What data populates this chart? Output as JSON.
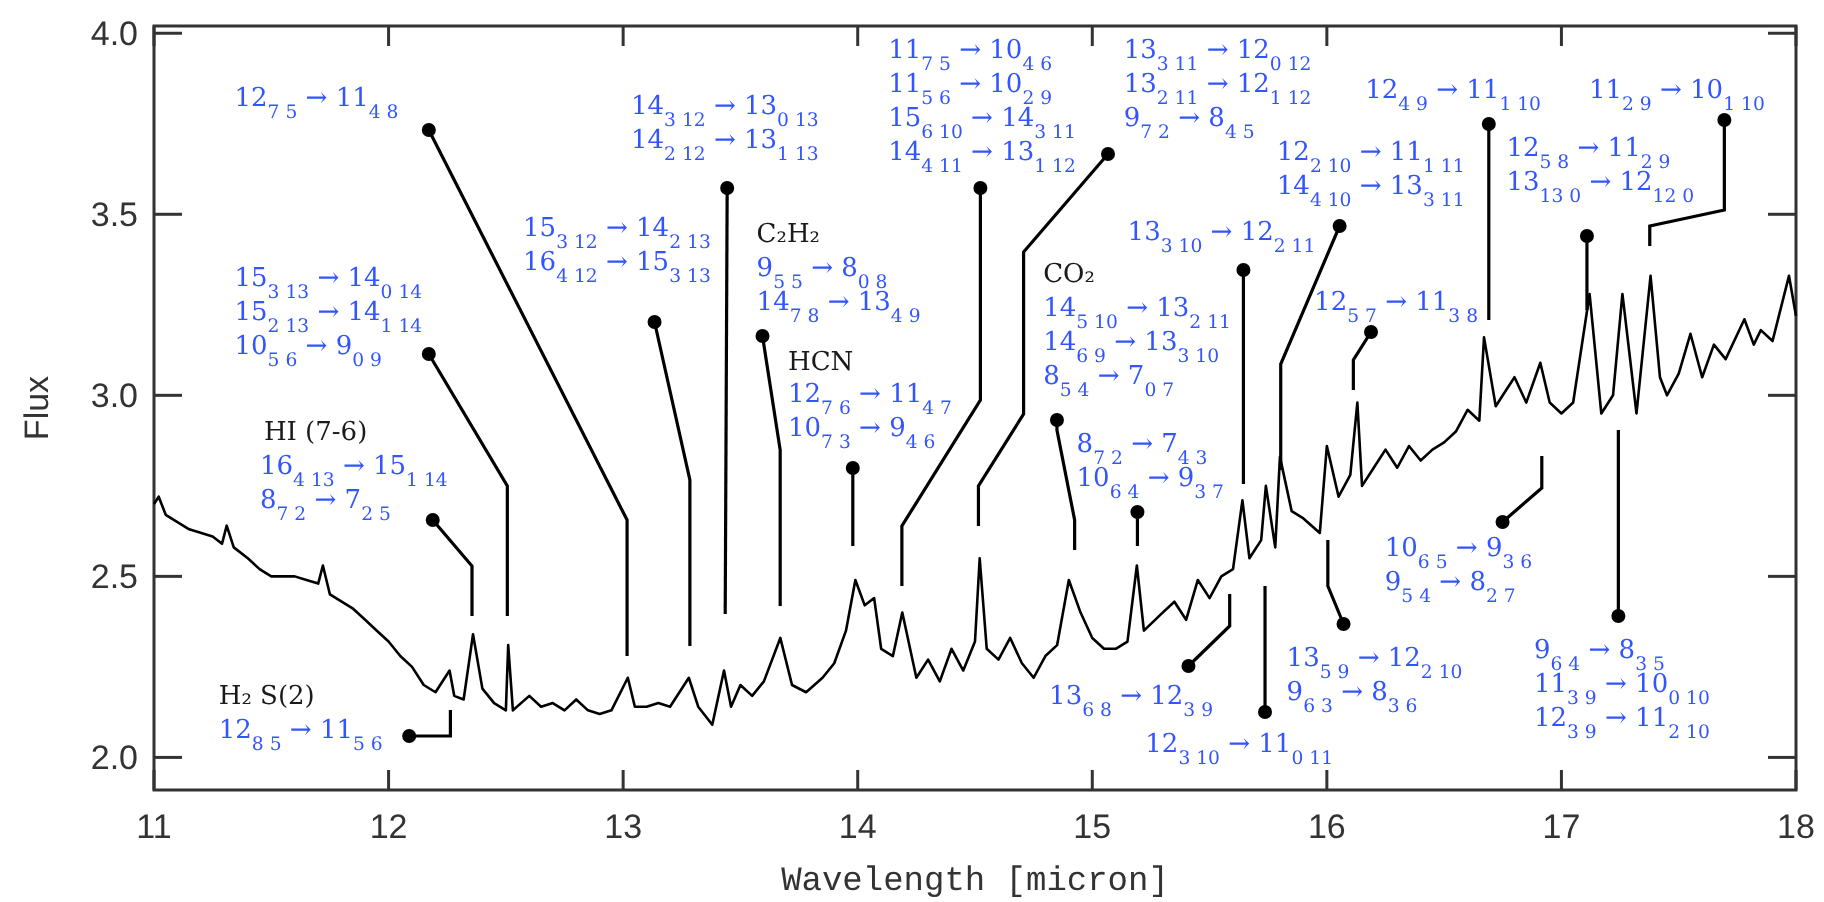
{
  "chart_data": {
    "type": "line",
    "xlabel": "Wavelength [micron]",
    "ylabel": "Flux",
    "xlim": [
      11,
      18
    ],
    "ylim": [
      1.91,
      4.02
    ],
    "xticks": [
      11,
      12,
      13,
      14,
      15,
      16,
      17,
      18
    ],
    "yticks": [
      {
        "value": 2,
        "label": "2.0"
      },
      {
        "value": 2.5,
        "label": "2.5"
      },
      {
        "value": 3,
        "label": "3.0"
      },
      {
        "value": 3.5,
        "label": "3.5"
      },
      {
        "value": 4,
        "label": "4.0"
      }
    ],
    "series": [
      {
        "color": "#000000",
        "x": [
          11.0,
          11.02,
          11.05,
          11.15,
          11.25,
          11.29,
          11.31,
          11.34,
          11.4,
          11.45,
          11.5,
          11.55,
          11.6,
          11.65,
          11.7,
          11.72,
          11.75,
          11.8,
          11.85,
          11.9,
          11.95,
          12.0,
          12.05,
          12.1,
          12.15,
          12.2,
          12.26,
          12.28,
          12.32,
          12.36,
          12.4,
          12.45,
          12.5,
          12.51,
          12.53,
          12.6,
          12.65,
          12.7,
          12.75,
          12.8,
          12.85,
          12.9,
          12.95,
          13.02,
          13.05,
          13.1,
          13.15,
          13.2,
          13.28,
          13.32,
          13.38,
          13.43,
          13.46,
          13.5,
          13.55,
          13.6,
          13.67,
          13.72,
          13.78,
          13.85,
          13.9,
          13.95,
          13.99,
          14.03,
          14.07,
          14.1,
          14.15,
          14.19,
          14.25,
          14.3,
          14.35,
          14.4,
          14.45,
          14.5,
          14.52,
          14.55,
          14.6,
          14.65,
          14.7,
          14.75,
          14.8,
          14.85,
          14.9,
          14.95,
          15.0,
          15.05,
          15.1,
          15.15,
          15.19,
          15.22,
          15.3,
          15.35,
          15.4,
          15.45,
          15.5,
          15.55,
          15.6,
          15.64,
          15.67,
          15.72,
          15.74,
          15.78,
          15.8,
          15.85,
          15.9,
          15.97,
          16.0,
          16.05,
          16.1,
          16.13,
          16.15,
          16.2,
          16.25,
          16.3,
          16.35,
          16.4,
          16.45,
          16.5,
          16.55,
          16.6,
          16.65,
          16.67,
          16.72,
          16.75,
          16.8,
          16.85,
          16.91,
          16.95,
          17.0,
          17.05,
          17.12,
          17.17,
          17.22,
          17.26,
          17.32,
          17.38,
          17.42,
          17.45,
          17.5,
          17.55,
          17.6,
          17.65,
          17.7,
          17.78,
          17.82,
          17.85,
          17.9,
          17.97,
          18.0
        ],
        "values": [
          2.7,
          2.72,
          2.67,
          2.63,
          2.61,
          2.59,
          2.64,
          2.58,
          2.55,
          2.52,
          2.5,
          2.5,
          2.5,
          2.49,
          2.48,
          2.53,
          2.45,
          2.43,
          2.41,
          2.38,
          2.35,
          2.32,
          2.28,
          2.25,
          2.2,
          2.18,
          2.24,
          2.17,
          2.16,
          2.34,
          2.19,
          2.15,
          2.13,
          2.31,
          2.13,
          2.17,
          2.14,
          2.15,
          2.13,
          2.16,
          2.13,
          2.12,
          2.13,
          2.22,
          2.14,
          2.14,
          2.15,
          2.14,
          2.22,
          2.14,
          2.09,
          2.24,
          2.14,
          2.2,
          2.17,
          2.21,
          2.33,
          2.2,
          2.18,
          2.22,
          2.26,
          2.35,
          2.49,
          2.42,
          2.44,
          2.3,
          2.28,
          2.4,
          2.22,
          2.27,
          2.21,
          2.3,
          2.24,
          2.32,
          2.55,
          2.3,
          2.27,
          2.33,
          2.26,
          2.22,
          2.28,
          2.31,
          2.49,
          2.4,
          2.33,
          2.3,
          2.3,
          2.32,
          2.53,
          2.35,
          2.4,
          2.43,
          2.38,
          2.49,
          2.44,
          2.5,
          2.52,
          2.71,
          2.55,
          2.6,
          2.75,
          2.58,
          2.83,
          2.68,
          2.66,
          2.62,
          2.86,
          2.72,
          2.78,
          2.98,
          2.75,
          2.8,
          2.85,
          2.8,
          2.86,
          2.82,
          2.85,
          2.87,
          2.9,
          2.96,
          2.93,
          3.16,
          2.97,
          3.0,
          3.05,
          2.98,
          3.09,
          2.98,
          2.95,
          2.98,
          3.28,
          2.95,
          3.0,
          3.28,
          2.95,
          3.33,
          3.05,
          3.0,
          3.06,
          3.17,
          3.05,
          3.14,
          3.1,
          3.21,
          3.14,
          3.18,
          3.15,
          3.33,
          3.22
        ]
      }
    ],
    "annotations": [
      "12$_{7 5}$ → 11$_{4 8}$",
      "15$_{3 13}$ → 14$_{0 14}$",
      "15$_{2 13}$ → 14$_{1 14}$",
      "10$_{5 6}$ → 9$_{0 9}$",
      "HI (7-6)",
      "16$_{4 13}$ → 15$_{1 14}$",
      "8$_{7 2}$ → 7$_{2 5}$",
      "H₂ S(2)",
      "12$_{8 5}$ → 11$_{5 6}$",
      "14$_{3 12}$ → 13$_{0 13}$",
      "14$_{2 12}$ → 13$_{1 13}$",
      "15$_{3 12}$ → 14$_{2 13}$",
      "16$_{4 12}$ → 15$_{3 13}$",
      "C₂H₂",
      "9$_{5 5}$ → 8$_{0 8}$",
      "14$_{7 8}$ → 13$_{4 9}$",
      "HCN",
      "12$_{7 6}$ → 11$_{4 7}$",
      "10$_{7 3}$ → 9$_{4 6}$",
      "11$_{7 5}$ → 10$_{4 6}$",
      "11$_{5 6}$ → 10$_{2 9}$",
      "15$_{6 10}$ → 14$_{3 11}$",
      "14$_{4 11}$ → 13$_{1 12}$",
      "13$_{3 11}$ → 12$_{0 12}$",
      "13$_{2 11}$ → 12$_{1 12}$",
      "9$_{7 2}$ → 8$_{4 5}$",
      "CO₂",
      "14$_{5 10}$ → 13$_{2 11}$",
      "14$_{6 9}$ → 13$_{3 10}$",
      "8$_{5 4}$ → 7$_{0 7}$",
      "8$_{7 2}$ → 7$_{4 3}$",
      "10$_{6 4}$ → 9$_{3 7}$",
      "13$_{3 10}$ → 12$_{2 11}$",
      "12$_{2 10}$ → 11$_{1 11}$",
      "14$_{4 10}$ → 13$_{3 11}$",
      "12$_{5 7}$ → 11$_{3 8}$",
      "12$_{4 9}$ → 11$_{1 10}$",
      "12$_{5 8}$ → 11$_{2 9}$",
      "13$_{13 0}$ → 12$_{12 0}$",
      "11$_{2 9}$ → 10$_{1 10}$",
      "13$_{6 8}$ → 12$_{3 9}$",
      "12$_{3 10}$ → 11$_{0 11}$",
      "13$_{5 9}$ → 12$_{2 10}$",
      "9$_{6 3}$ → 8$_{3 6}$",
      "10$_{6 5}$ → 9$_{3 6}$",
      "9$_{5 4}$ → 8$_{2 7}$",
      "9$_{6 4}$ → 8$_{3 5}$",
      "11$_{3 9}$ → 10$_{0 10}$",
      "12$_{3 9}$ → 11$_{2 10}$"
    ]
  }
}
